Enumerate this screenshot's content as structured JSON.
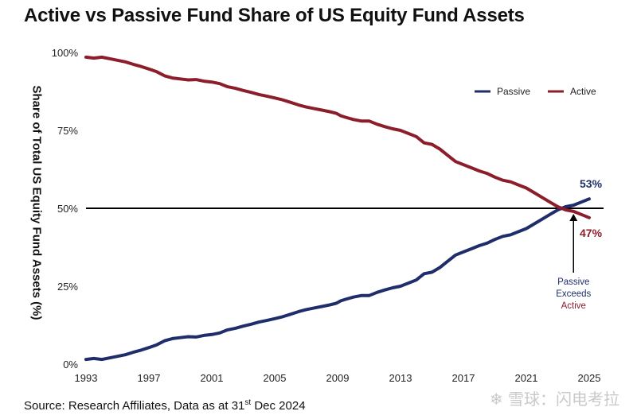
{
  "chart_data": {
    "type": "line",
    "title": "Active vs Passive Fund Share of US Equity Fund Assets",
    "ylabel": "Share of Total US Equity Fund Assets (%)",
    "xlabel": "",
    "xlim": [
      1993,
      2025
    ],
    "ylim": [
      0,
      100
    ],
    "x_ticks": [
      "1993",
      "1997",
      "2001",
      "2005",
      "2009",
      "2013",
      "2017",
      "2021",
      "2025"
    ],
    "x_tick_values": [
      1993,
      1997,
      2001,
      2005,
      2009,
      2013,
      2017,
      2021,
      2025
    ],
    "y_ticks": [
      "0%",
      "25%",
      "50%",
      "75%",
      "100%"
    ],
    "y_tick_values": [
      0,
      25,
      50,
      75,
      100
    ],
    "reference_line": 50,
    "legend": {
      "position": "top-right"
    },
    "series": [
      {
        "name": "Passive",
        "color": "#1f2d6b",
        "x": [
          1993.0,
          1993.5,
          1994.0,
          1994.5,
          1995.0,
          1995.5,
          1996.0,
          1996.5,
          1997.0,
          1997.5,
          1998.0,
          1998.5,
          1999.0,
          1999.5,
          2000.0,
          2000.5,
          2001.0,
          2001.5,
          2002.0,
          2002.5,
          2003.0,
          2003.5,
          2004.0,
          2004.5,
          2005.0,
          2005.5,
          2006.0,
          2006.5,
          2007.0,
          2007.5,
          2008.0,
          2008.5,
          2008.9,
          2009.2,
          2009.5,
          2010.0,
          2010.5,
          2011.0,
          2011.5,
          2012.0,
          2012.5,
          2013.0,
          2013.5,
          2014.0,
          2014.5,
          2015.0,
          2015.5,
          2016.0,
          2016.5,
          2017.0,
          2017.5,
          2018.0,
          2018.5,
          2019.0,
          2019.5,
          2020.0,
          2020.5,
          2021.0,
          2021.5,
          2022.0,
          2022.5,
          2023.0,
          2023.5,
          2024.0,
          2024.5,
          2025.0
        ],
        "values": [
          1.5,
          1.8,
          1.5,
          2.0,
          2.5,
          3.0,
          3.8,
          4.5,
          5.3,
          6.2,
          7.5,
          8.2,
          8.5,
          8.8,
          8.7,
          9.2,
          9.5,
          10.0,
          11.0,
          11.5,
          12.2,
          12.8,
          13.5,
          14.0,
          14.6,
          15.2,
          16.0,
          16.8,
          17.5,
          18.0,
          18.5,
          19.0,
          19.5,
          20.3,
          20.8,
          21.5,
          22.0,
          22.0,
          23.0,
          23.8,
          24.5,
          25.0,
          26.0,
          27.0,
          29.0,
          29.5,
          31.0,
          33.0,
          35.0,
          36.0,
          37.0,
          38.0,
          38.8,
          40.0,
          41.0,
          41.5,
          42.5,
          43.5,
          45.0,
          46.5,
          48.0,
          49.5,
          50.5,
          51.0,
          52.0,
          53.0
        ]
      },
      {
        "name": "Active",
        "color": "#8c1d2a",
        "x": [
          1993.0,
          1993.5,
          1994.0,
          1994.5,
          1995.0,
          1995.5,
          1996.0,
          1996.5,
          1997.0,
          1997.5,
          1998.0,
          1998.5,
          1999.0,
          1999.5,
          2000.0,
          2000.5,
          2001.0,
          2001.5,
          2002.0,
          2002.5,
          2003.0,
          2003.5,
          2004.0,
          2004.5,
          2005.0,
          2005.5,
          2006.0,
          2006.5,
          2007.0,
          2007.5,
          2008.0,
          2008.5,
          2008.9,
          2009.2,
          2009.5,
          2010.0,
          2010.5,
          2011.0,
          2011.5,
          2012.0,
          2012.5,
          2013.0,
          2013.5,
          2014.0,
          2014.5,
          2015.0,
          2015.5,
          2016.0,
          2016.5,
          2017.0,
          2017.5,
          2018.0,
          2018.5,
          2019.0,
          2019.5,
          2020.0,
          2020.5,
          2021.0,
          2021.5,
          2022.0,
          2022.5,
          2023.0,
          2023.5,
          2024.0,
          2024.5,
          2025.0
        ],
        "values": [
          98.5,
          98.2,
          98.5,
          98.0,
          97.5,
          97.0,
          96.2,
          95.5,
          94.7,
          93.8,
          92.5,
          91.8,
          91.5,
          91.2,
          91.3,
          90.8,
          90.5,
          90.0,
          89.0,
          88.5,
          87.8,
          87.2,
          86.5,
          86.0,
          85.4,
          84.8,
          84.0,
          83.2,
          82.5,
          82.0,
          81.5,
          81.0,
          80.5,
          79.7,
          79.2,
          78.5,
          78.0,
          78.0,
          77.0,
          76.2,
          75.5,
          75.0,
          74.0,
          73.0,
          71.0,
          70.5,
          69.0,
          67.0,
          65.0,
          64.0,
          63.0,
          62.0,
          61.2,
          60.0,
          59.0,
          58.5,
          57.5,
          56.5,
          55.0,
          53.5,
          52.0,
          50.5,
          49.5,
          49.0,
          48.0,
          47.0
        ]
      }
    ],
    "end_labels": {
      "passive": "53%",
      "active": "47%"
    },
    "annotation": {
      "line1": "Passive",
      "line2": "Exceeds",
      "line3": "Active",
      "x": 2024.0,
      "y": 49.5
    }
  },
  "source": {
    "prefix": "Source: Research Affiliates, Data as at 31",
    "sup": "st",
    "suffix": " Dec 2024"
  },
  "watermark": "❄ 雪球：闪电考拉"
}
